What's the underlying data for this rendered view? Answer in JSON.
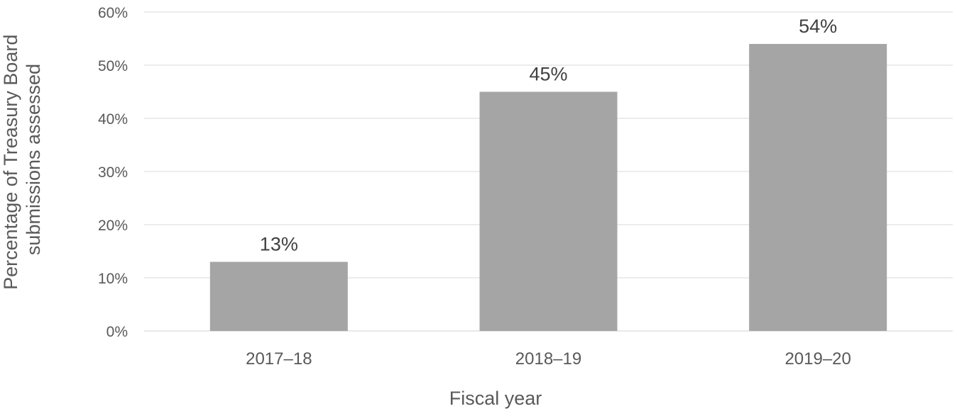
{
  "chart_data": {
    "type": "bar",
    "title": "",
    "xlabel": "Fiscal year",
    "ylabel": "Percentage of Treasury Board submissions assessed",
    "ylabel_lines": [
      "Percentage of Treasury Board",
      "submissions assessed"
    ],
    "categories": [
      "2017–18",
      "2018–19",
      "2019–20"
    ],
    "values": [
      13,
      45,
      54
    ],
    "value_labels": [
      "13%",
      "45%",
      "54%"
    ],
    "unit": "%",
    "ylim": [
      0,
      60
    ],
    "yticks": [
      0,
      10,
      20,
      30,
      40,
      50,
      60
    ],
    "ytick_labels": [
      "0%",
      "10%",
      "20%",
      "30%",
      "40%",
      "50%",
      "60%"
    ],
    "grid": true,
    "legend": "none",
    "colors": {
      "bar": "#a5a5a5",
      "grid": "#d9d9d9",
      "axis_text": "#595959",
      "data_label": "#404040"
    }
  }
}
